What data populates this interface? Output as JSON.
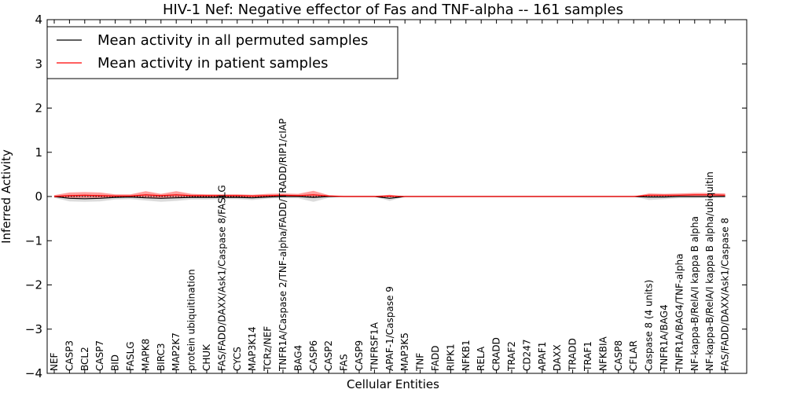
{
  "chart_data": {
    "type": "line",
    "title": "HIV-1 Nef: Negative effector of Fas and TNF-alpha -- 161 samples",
    "xlabel": "Cellular Entities",
    "ylabel": "Inferred Activity",
    "ylim": [
      -4,
      4
    ],
    "yticks": [
      "4",
      "3",
      "2",
      "1",
      "0",
      "−1",
      "−2",
      "−3",
      "−4"
    ],
    "ytick_values": [
      4,
      3,
      2,
      1,
      0,
      -1,
      -2,
      -3,
      -4
    ],
    "categories": [
      "NEF",
      "CASP3",
      "BCL2",
      "CASP7",
      "BID",
      "FASLG",
      "MAPK8",
      "BIRC3",
      "MAP2K7",
      "protein ubiquitination",
      "CHUK",
      "FAS/FADD/DAXX/Ask1/Caspase 8/FASLG",
      "CYCS",
      "MAP3K14",
      "TCRz/NEF",
      "TNFR1A/Caspase 2/TNF-alpha/FADD/TRADD/RIP1/cIAP",
      "BAG4",
      "CASP6",
      "CASP2",
      "FAS",
      "CASP9",
      "TNFRSF1A",
      "APAF-1/Caspase 9",
      "MAP3K5",
      "TNF",
      "FADD",
      "RIPK1",
      "NFKB1",
      "RELA",
      "CRADD",
      "TRAF2",
      "CD247",
      "APAF1",
      "DAXX",
      "TRADD",
      "TRAF1",
      "NFKBIA",
      "CASP8",
      "CFLAR",
      "Caspase 8 (4 units)",
      "TNFR1A/BAG4",
      "TNFR1A/BAG4/TNF-alpha",
      "NF-kappa-B/RelA/I kappa B alpha",
      "NF-kappa-B/RelA/I kappa B alpha/ubiquitin",
      "FAS/FADD/DAXX/Ask1/Caspase 8"
    ],
    "series": [
      {
        "name": "Mean activity in all permuted samples",
        "color": "#000000",
        "values": [
          0.0,
          -0.04,
          -0.05,
          -0.04,
          -0.02,
          -0.01,
          -0.03,
          -0.04,
          -0.03,
          -0.02,
          -0.02,
          -0.02,
          -0.02,
          -0.03,
          -0.01,
          0.0,
          0.0,
          -0.02,
          0.0,
          0.0,
          0.0,
          0.0,
          -0.04,
          0.0,
          0.0,
          0.0,
          0.0,
          0.0,
          0.0,
          0.0,
          0.0,
          0.0,
          0.0,
          0.0,
          0.0,
          0.0,
          0.0,
          0.0,
          0.0,
          -0.01,
          -0.01,
          0.0,
          0.0,
          0.0,
          0.0
        ],
        "band": {
          "color": "#808080",
          "upper": [
            0.02,
            0.03,
            0.03,
            0.03,
            0.02,
            0.02,
            0.03,
            0.03,
            0.03,
            0.02,
            0.02,
            0.02,
            0.02,
            0.02,
            0.02,
            0.01,
            0.01,
            0.03,
            0.01,
            0.0,
            0.0,
            0.0,
            0.02,
            0.0,
            0.0,
            0.0,
            0.0,
            0.0,
            0.0,
            0.0,
            0.0,
            0.0,
            0.0,
            0.0,
            0.0,
            0.0,
            0.0,
            0.0,
            0.0,
            0.02,
            0.02,
            0.02,
            0.02,
            0.02,
            0.02
          ],
          "lower": [
            -0.03,
            -0.11,
            -0.12,
            -0.11,
            -0.07,
            -0.06,
            -0.09,
            -0.12,
            -0.1,
            -0.07,
            -0.07,
            -0.06,
            -0.06,
            -0.08,
            -0.05,
            -0.04,
            -0.04,
            -0.12,
            -0.03,
            0.0,
            0.0,
            0.0,
            -0.1,
            0.0,
            0.0,
            0.0,
            0.0,
            0.0,
            0.0,
            0.0,
            0.0,
            0.0,
            0.0,
            0.0,
            0.0,
            0.0,
            0.0,
            0.0,
            0.0,
            -0.08,
            -0.06,
            -0.04,
            -0.04,
            -0.03,
            -0.02
          ]
        }
      },
      {
        "name": "Mean activity in patient samples",
        "color": "#ff0000",
        "values": [
          0.0,
          0.02,
          0.03,
          0.02,
          0.01,
          0.01,
          0.04,
          0.02,
          0.04,
          0.02,
          0.02,
          0.02,
          0.02,
          0.01,
          0.02,
          0.03,
          0.02,
          0.04,
          0.01,
          0.0,
          0.0,
          0.0,
          0.01,
          0.0,
          0.0,
          0.0,
          0.0,
          0.0,
          0.0,
          0.0,
          0.0,
          0.0,
          0.0,
          0.0,
          0.0,
          0.0,
          0.0,
          0.0,
          0.0,
          0.03,
          0.03,
          0.03,
          0.04,
          0.04,
          0.03
        ],
        "band": {
          "color": "#ff0000",
          "upper": [
            0.03,
            0.09,
            0.1,
            0.09,
            0.05,
            0.05,
            0.12,
            0.06,
            0.12,
            0.06,
            0.05,
            0.05,
            0.05,
            0.04,
            0.06,
            0.07,
            0.06,
            0.13,
            0.03,
            0.01,
            0.01,
            0.01,
            0.04,
            0.0,
            0.0,
            0.0,
            0.0,
            0.0,
            0.0,
            0.0,
            0.0,
            0.0,
            0.0,
            0.0,
            0.0,
            0.0,
            0.0,
            0.0,
            0.0,
            0.07,
            0.06,
            0.07,
            0.08,
            0.08,
            0.07
          ],
          "lower": [
            -0.02,
            -0.03,
            -0.03,
            -0.03,
            -0.02,
            -0.02,
            -0.02,
            -0.03,
            -0.02,
            -0.01,
            -0.01,
            -0.01,
            -0.01,
            -0.02,
            -0.01,
            0.0,
            0.0,
            -0.02,
            0.0,
            0.0,
            0.0,
            0.0,
            -0.02,
            0.0,
            0.0,
            0.0,
            0.0,
            0.0,
            0.0,
            0.0,
            0.0,
            0.0,
            0.0,
            0.0,
            0.0,
            0.0,
            0.0,
            0.0,
            0.0,
            0.0,
            0.0,
            0.0,
            0.0,
            0.0,
            0.0
          ]
        }
      }
    ],
    "reference_line": {
      "y": 0,
      "style": "dotted",
      "color": "#000000"
    },
    "legend": {
      "position": "top-left",
      "frame": true
    },
    "grid": false
  }
}
